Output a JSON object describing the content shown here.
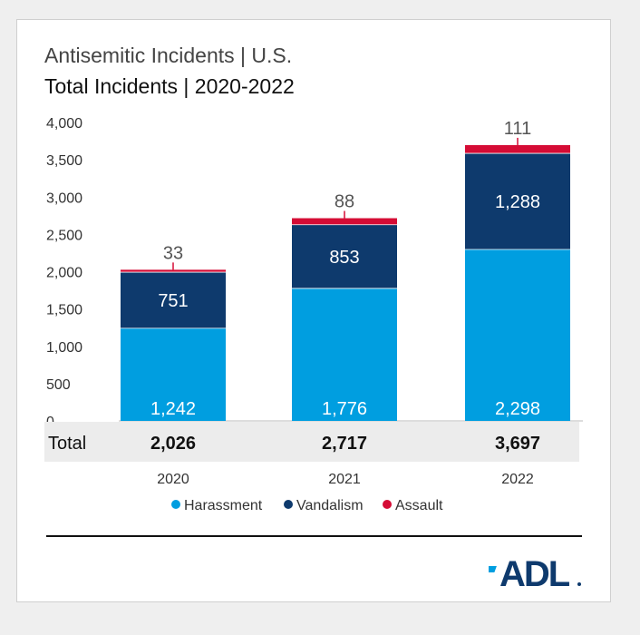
{
  "title": "Antisemitic Incidents | U.S.",
  "subtitle": "Total Incidents | 2020-2022",
  "total_label": "Total",
  "logo_text": "ADL",
  "colors": {
    "harassment": "#009ee0",
    "vandalism": "#0e3a6d",
    "assault": "#d50c35",
    "total_band": "#ececec"
  },
  "chart_data": {
    "type": "bar",
    "stacked": true,
    "categories": [
      "2020",
      "2021",
      "2022"
    ],
    "series": [
      {
        "name": "Harassment",
        "values": [
          1242,
          1776,
          2298
        ],
        "value_labels": [
          "1,242",
          "1,776",
          "2,298"
        ]
      },
      {
        "name": "Vandalism",
        "values": [
          751,
          853,
          1288
        ],
        "value_labels": [
          "751",
          "853",
          "1,288"
        ]
      },
      {
        "name": "Assault",
        "values": [
          33,
          88,
          111
        ],
        "value_labels": [
          "33",
          "88",
          "111"
        ]
      }
    ],
    "totals": [
      "2,026",
      "2,717",
      "3,697"
    ],
    "ylim": [
      0,
      4000
    ],
    "yticks": [
      0,
      500,
      1000,
      1500,
      2000,
      2500,
      3000,
      3500,
      4000
    ],
    "ytick_labels": [
      "0",
      "500",
      "1,000",
      "1,500",
      "2,000",
      "2,500",
      "3,000",
      "3,500",
      "4,000"
    ],
    "grid": false,
    "legend_position": "bottom"
  }
}
